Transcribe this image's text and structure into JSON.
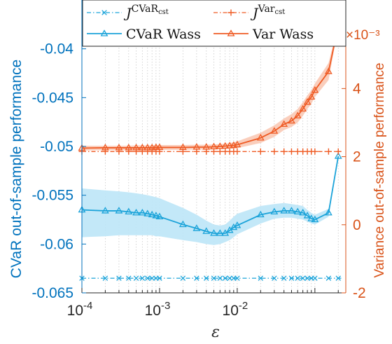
{
  "chart_data": {
    "type": "line",
    "xscale": "log",
    "xlim": [
      0.0001,
      0.25
    ],
    "xlabel": "ε",
    "x_ticks": [
      {
        "value": 0.0001,
        "base": "10",
        "exp": "-4"
      },
      {
        "value": 0.001,
        "base": "10",
        "exp": "-3"
      },
      {
        "value": 0.01,
        "base": "10",
        "exp": "-2"
      }
    ],
    "left_axis": {
      "label": "CVaR out-of-sample performance",
      "ylim": [
        -0.065,
        -0.035
      ],
      "ticks": [
        {
          "value": -0.04,
          "label": "-0.04"
        },
        {
          "value": -0.045,
          "label": "-0.045"
        },
        {
          "value": -0.05,
          "label": "-0.05"
        },
        {
          "value": -0.055,
          "label": "-0.055"
        },
        {
          "value": -0.06,
          "label": "-0.06"
        },
        {
          "value": -0.065,
          "label": "-0.065"
        }
      ],
      "color": "#0072BD"
    },
    "right_axis": {
      "label": "Variance out-of-sample performance",
      "ylim": [
        -2,
        6.6
      ],
      "exponent_label": "×10⁻³",
      "ticks": [
        {
          "value": 4,
          "label": "4"
        },
        {
          "value": 2,
          "label": "2"
        },
        {
          "value": 0,
          "label": "0"
        },
        {
          "value": -2,
          "label": "-2"
        }
      ],
      "color": "#D95319"
    },
    "grid": "x-minor-dotted",
    "legend": {
      "placement": "top",
      "entries": [
        {
          "key": "cvar_cst",
          "symbol": "J",
          "sup": "CVaR",
          "subsup": "cst"
        },
        {
          "key": "var_cst",
          "symbol": "J",
          "sup": "Var",
          "subsup": "cst"
        },
        {
          "key": "cvar_wass",
          "text": "CVaR Wass"
        },
        {
          "key": "var_wass",
          "text": "Var Wass"
        }
      ]
    },
    "x": [
      0.0001,
      0.0002,
      0.0003,
      0.0004,
      0.0005,
      0.0006,
      0.0007,
      0.0008,
      0.0009,
      0.001,
      0.002,
      0.003,
      0.004,
      0.005,
      0.006,
      0.007,
      0.008,
      0.009,
      0.01,
      0.02,
      0.03,
      0.04,
      0.05,
      0.06,
      0.07,
      0.08,
      0.09,
      0.1,
      0.15,
      0.2
    ],
    "series": [
      {
        "name": "CVaR Wass",
        "axis": "left",
        "color": "#0072BD",
        "line_color": "#1BA3D9",
        "marker": "triangle",
        "values": [
          -0.0565,
          -0.0566,
          -0.0566,
          -0.0567,
          -0.0568,
          -0.0568,
          -0.0569,
          -0.057,
          -0.0571,
          -0.0572,
          -0.058,
          -0.0584,
          -0.0587,
          -0.0589,
          -0.0589,
          -0.0589,
          -0.0586,
          -0.0583,
          -0.0581,
          -0.057,
          -0.0567,
          -0.0566,
          -0.0566,
          -0.0567,
          -0.0568,
          -0.0571,
          -0.0574,
          -0.0575,
          -0.0568,
          -0.051
        ],
        "band_upper": [
          -0.0543,
          -0.0545,
          -0.0546,
          -0.0547,
          -0.0548,
          -0.0549,
          -0.055,
          -0.0551,
          -0.0552,
          -0.0553,
          -0.0563,
          -0.057,
          -0.0576,
          -0.058,
          -0.0581,
          -0.058,
          -0.0576,
          -0.0572,
          -0.0569,
          -0.0561,
          -0.0559,
          -0.0558,
          -0.0559,
          -0.056,
          -0.0561,
          -0.0565,
          -0.0568,
          -0.057,
          -0.0564,
          -0.0508
        ],
        "band_lower": [
          -0.0593,
          -0.0592,
          -0.0591,
          -0.0591,
          -0.0591,
          -0.0591,
          -0.0591,
          -0.0591,
          -0.0592,
          -0.0592,
          -0.0596,
          -0.0598,
          -0.06,
          -0.0601,
          -0.06,
          -0.0598,
          -0.0596,
          -0.0593,
          -0.059,
          -0.0579,
          -0.0574,
          -0.0573,
          -0.0573,
          -0.0574,
          -0.0575,
          -0.0577,
          -0.0579,
          -0.058,
          -0.0572,
          -0.0512
        ]
      },
      {
        "name": "Var Wass",
        "axis": "right",
        "color": "#D95319",
        "line_color": "#EF5B24",
        "marker": "triangle",
        "values": [
          2.25,
          2.26,
          2.26,
          2.26,
          2.26,
          2.26,
          2.26,
          2.26,
          2.27,
          2.27,
          2.27,
          2.28,
          2.28,
          2.29,
          2.3,
          2.31,
          2.32,
          2.33,
          2.35,
          2.55,
          2.75,
          2.95,
          3.05,
          3.2,
          3.4,
          3.6,
          3.75,
          3.95,
          4.5,
          5.85
        ],
        "band_upper": [
          2.32,
          2.32,
          2.32,
          2.32,
          2.33,
          2.33,
          2.33,
          2.33,
          2.34,
          2.34,
          2.34,
          2.35,
          2.35,
          2.36,
          2.37,
          2.38,
          2.4,
          2.42,
          2.45,
          2.7,
          2.92,
          3.12,
          3.25,
          3.4,
          3.6,
          3.8,
          3.95,
          4.15,
          4.75,
          5.9
        ],
        "band_lower": [
          2.18,
          2.19,
          2.19,
          2.19,
          2.19,
          2.19,
          2.19,
          2.19,
          2.2,
          2.2,
          2.2,
          2.21,
          2.21,
          2.22,
          2.23,
          2.24,
          2.24,
          2.24,
          2.25,
          2.4,
          2.58,
          2.78,
          2.87,
          3.0,
          3.2,
          3.4,
          3.55,
          3.75,
          4.25,
          5.8
        ]
      },
      {
        "name": "J^CVaR_cst",
        "axis": "left",
        "color": "#1BA3D9",
        "marker": "x",
        "linestyle": "dash-dot",
        "constant": -0.0635
      },
      {
        "name": "J^Var_cst",
        "axis": "right",
        "color": "#EF5B24",
        "marker": "plus",
        "linestyle": "dash-dot",
        "constant": 2.15
      }
    ]
  }
}
